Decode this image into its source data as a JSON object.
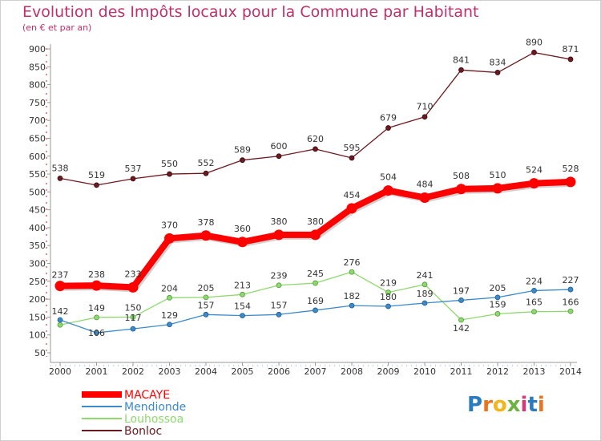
{
  "header": {
    "title": "Evolution des Impôts locaux pour la Commune par Habitant",
    "subtitle": "(en € et par an)"
  },
  "logo": {
    "text": "Proxiti",
    "letters": [
      "P",
      "r",
      "o",
      "x",
      "i",
      "t",
      "i"
    ],
    "colors": [
      "#2b7bc0",
      "#e8741e",
      "#f2b51b",
      "#6db33f",
      "#d23b7a",
      "#2b7bc0",
      "#e8741e"
    ]
  },
  "chart_data": {
    "type": "line",
    "title": "Evolution des Impôts locaux pour la Commune par Habitant",
    "subtitle": "(en € et par an)",
    "x": [
      "2000",
      "2001",
      "2002",
      "2003",
      "2004",
      "2005",
      "2006",
      "2007",
      "2008",
      "2009",
      "2010",
      "2011",
      "2012",
      "2013",
      "2014"
    ],
    "ylim": [
      50,
      900
    ],
    "yticks": [
      50,
      100,
      150,
      200,
      250,
      300,
      350,
      400,
      450,
      500,
      550,
      600,
      650,
      700,
      750,
      800,
      850,
      900
    ],
    "grid": false,
    "legend_position": "bottom-left",
    "series": [
      {
        "name": "MACAYE",
        "color": "#ff0000",
        "values": [
          237,
          238,
          233,
          370,
          378,
          360,
          380,
          380,
          454,
          504,
          484,
          508,
          510,
          524,
          528
        ]
      },
      {
        "name": "Mendionde",
        "color": "#3d8ac9",
        "values": [
          142,
          106,
          117,
          129,
          157,
          154,
          157,
          169,
          182,
          180,
          189,
          197,
          205,
          224,
          227
        ]
      },
      {
        "name": "Louhossoa",
        "color": "#8ed86e",
        "values": [
          128,
          149,
          150,
          204,
          205,
          213,
          239,
          245,
          276,
          219,
          241,
          142,
          159,
          165,
          166
        ]
      },
      {
        "name": "Bonloc",
        "color": "#6b1a20",
        "values": [
          538,
          519,
          537,
          550,
          552,
          589,
          600,
          620,
          595,
          679,
          710,
          841,
          834,
          890,
          871
        ]
      }
    ],
    "labels": {
      "MACAYE": [
        "237",
        "238",
        "233",
        "370",
        "378",
        "360",
        "380",
        "380",
        "454",
        "504",
        "484",
        "508",
        "510",
        "524",
        "528"
      ],
      "Mendionde": [
        "142",
        "106",
        "117",
        "129",
        "157",
        "154",
        "157",
        "169",
        "182",
        "180",
        "189",
        "197",
        "205",
        "224",
        "227"
      ],
      "Louhossoa": [
        "",
        "149",
        "150",
        "204",
        "205",
        "213",
        "239",
        "245",
        "276",
        "219",
        "241",
        "142",
        "159",
        "165",
        "166"
      ],
      "Bonloc": [
        "538",
        "519",
        "537",
        "550",
        "552",
        "589",
        "600",
        "620",
        "595",
        "679",
        "710",
        "841",
        "834",
        "890",
        "871"
      ]
    }
  }
}
